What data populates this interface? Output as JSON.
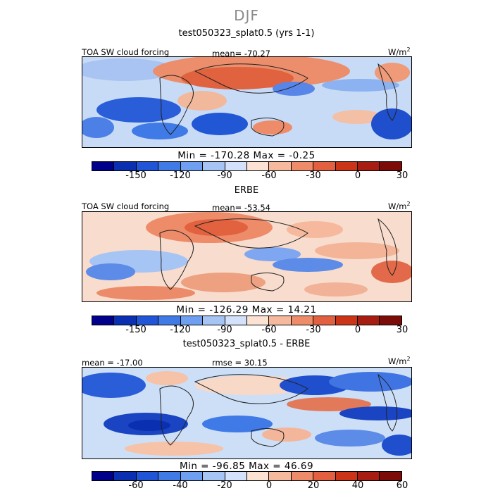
{
  "season": "DJF",
  "panels": [
    {
      "title": "test050323_splat0.5 (yrs 1-1)",
      "left_label": "TOA SW cloud forcing",
      "mean_label": "mean= -70.27",
      "units": "W/m",
      "units_sup": "2",
      "minmax": "Min = -170.28 Max =  -0.25",
      "colorbar": {
        "colors": [
          "#00008b",
          "#0a2fb0",
          "#1f55d6",
          "#3f7ae6",
          "#6f9ff0",
          "#a6c4f4",
          "#d3e2fa",
          "#fbe2d3",
          "#f6b99d",
          "#ee8c6a",
          "#e25f40",
          "#cc3418",
          "#a71d12",
          "#7b0c08"
        ],
        "tick_labels": [
          "-150",
          "-120",
          "-90",
          "-60",
          "-30",
          "0",
          "30"
        ]
      }
    },
    {
      "title": "ERBE",
      "left_label": "TOA SW cloud forcing",
      "mean_label": "mean= -53.54",
      "units": "W/m",
      "units_sup": "2",
      "minmax": "Min = -126.29 Max =  14.21",
      "colorbar": {
        "colors": [
          "#00008b",
          "#0a2fb0",
          "#1f55d6",
          "#3f7ae6",
          "#6f9ff0",
          "#a6c4f4",
          "#d3e2fa",
          "#fbe2d3",
          "#f6b99d",
          "#ee8c6a",
          "#e25f40",
          "#cc3418",
          "#a71d12",
          "#7b0c08"
        ],
        "tick_labels": [
          "-150",
          "-120",
          "-90",
          "-60",
          "-30",
          "0",
          "30"
        ]
      }
    },
    {
      "title": "test050323_splat0.5 - ERBE",
      "left_label": "mean = -17.00",
      "mean_label": "rmse =  30.15",
      "units": "W/m",
      "units_sup": "2",
      "minmax": "Min = -96.85 Max =  46.69",
      "colorbar": {
        "colors": [
          "#00008b",
          "#0a2fb0",
          "#1f55d6",
          "#3f7ae6",
          "#6f9ff0",
          "#a6c4f4",
          "#d3e2fa",
          "#fbe2d3",
          "#f6b99d",
          "#ee8c6a",
          "#e25f40",
          "#cc3418",
          "#a71d12",
          "#7b0c08"
        ],
        "tick_labels": [
          "-60",
          "-40",
          "-20",
          "0",
          "20",
          "40",
          "60"
        ]
      }
    }
  ]
}
